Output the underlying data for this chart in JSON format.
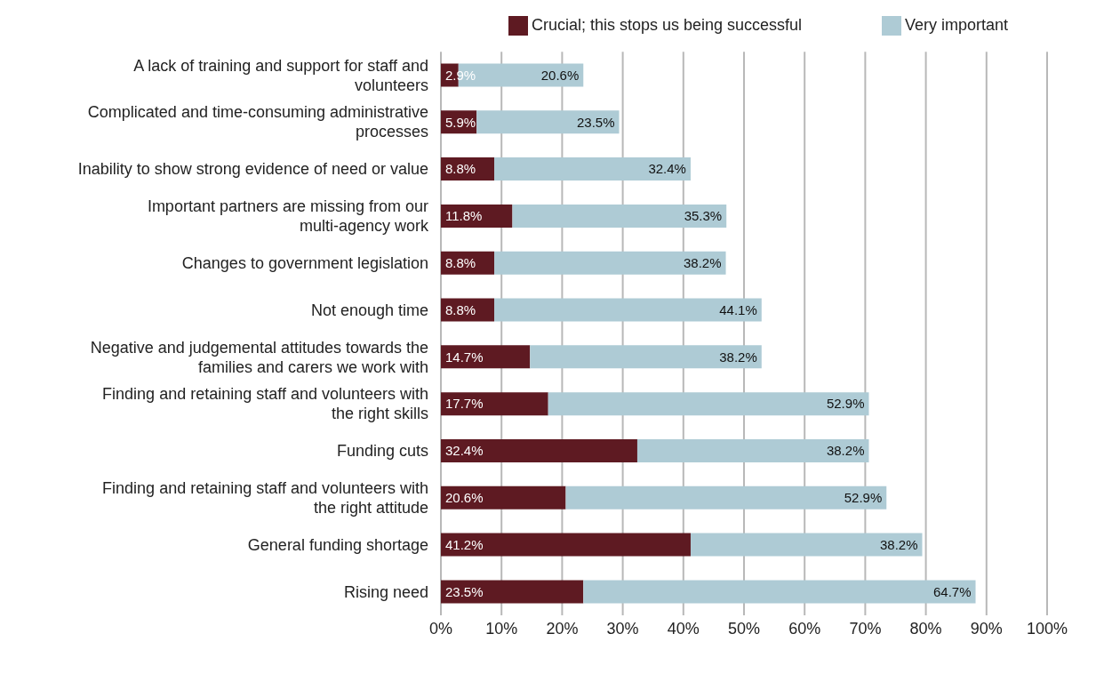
{
  "chart_data": {
    "type": "bar",
    "orientation": "horizontal",
    "stacked": true,
    "categories": [
      "A lack of training and support for staff and volunteers",
      "Complicated and time-consuming administrative processes",
      "Inability to show strong evidence of need or value",
      "Important partners are missing from our multi-agency work",
      "Changes to government legislation",
      "Not enough time",
      "Negative and judgemental attitudes towards the families and carers we work with",
      "Finding and retaining staff and volunteers with the right skills",
      "Funding cuts",
      "Finding and retaining staff and volunteers with the right attitude",
      "General funding shortage",
      "Rising need"
    ],
    "series": [
      {
        "name": "Crucial; this stops us being successful",
        "color": "#5e1a22",
        "values": [
          2.9,
          5.9,
          8.8,
          11.8,
          8.8,
          8.8,
          14.7,
          17.7,
          32.4,
          20.6,
          41.2,
          23.5
        ],
        "value_labels": [
          "2.9%",
          "5.9%",
          "8.8%",
          "11.8%",
          "8.8%",
          "8.8%",
          "14.7%",
          "17.7%",
          "32.4%",
          "20.6%",
          "41.2%",
          "23.5%"
        ]
      },
      {
        "name": "Very important",
        "color": "#aecbd5",
        "values": [
          20.6,
          23.5,
          32.4,
          35.3,
          38.2,
          44.1,
          38.2,
          52.9,
          38.2,
          52.9,
          38.2,
          64.7
        ],
        "value_labels": [
          "20.6%",
          "23.5%",
          "32.4%",
          "35.3%",
          "38.2%",
          "44.1%",
          "38.2%",
          "52.9%",
          "38.2%",
          "52.9%",
          "38.2%",
          "64.7%"
        ]
      }
    ],
    "xlim": [
      0,
      100
    ],
    "xticks": [
      {
        "value": 0,
        "label": "0%"
      },
      {
        "value": 10,
        "label": "10%"
      },
      {
        "value": 20,
        "label": "20%"
      },
      {
        "value": 30,
        "label": "30%"
      },
      {
        "value": 40,
        "label": "40%"
      },
      {
        "value": 50,
        "label": "50%"
      },
      {
        "value": 60,
        "label": "60%"
      },
      {
        "value": 70,
        "label": "70%"
      },
      {
        "value": 80,
        "label": "80%"
      },
      {
        "value": 90,
        "label": "90%"
      },
      {
        "value": 100,
        "label": "100%"
      }
    ],
    "grid": "x",
    "legend": "top"
  }
}
